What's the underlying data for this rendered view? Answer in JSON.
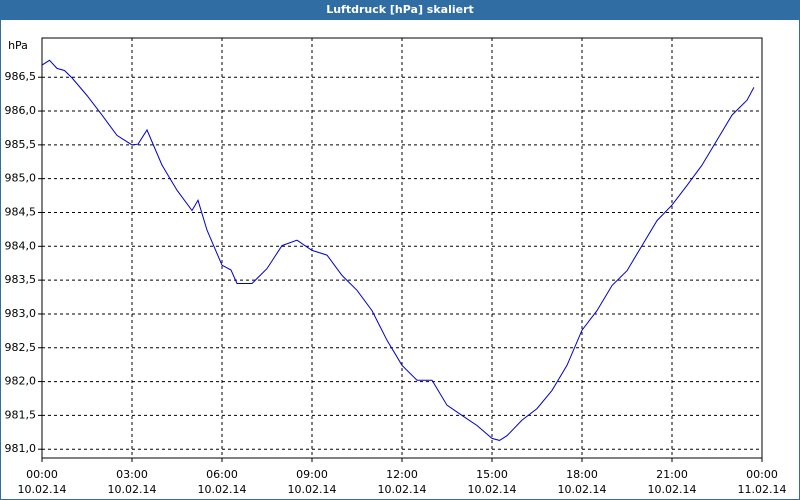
{
  "chart_data": {
    "type": "line",
    "title": "Luftdruck [hPa] skaliert",
    "ylabel": "hPa",
    "x": [
      0,
      0.25,
      0.5,
      0.75,
      1,
      1.5,
      2,
      2.5,
      3,
      3.2,
      3.5,
      4,
      4.5,
      5,
      5.2,
      5.5,
      6,
      6.3,
      6.5,
      7,
      7.5,
      8,
      8.5,
      9,
      9.5,
      10,
      10.5,
      11,
      11.5,
      12,
      12.5,
      13,
      13.5,
      14,
      14.5,
      15,
      15.25,
      15.5,
      16,
      16.5,
      17,
      17.5,
      18,
      18.5,
      19,
      19.5,
      20,
      20.5,
      21,
      21.5,
      22,
      22.5,
      23,
      23.5,
      23.73
    ],
    "series": [
      {
        "name": "Luftdruck",
        "color": "#0000cc",
        "values": [
          986.68,
          986.75,
          986.63,
          986.6,
          986.49,
          986.23,
          985.94,
          985.64,
          985.5,
          985.51,
          985.72,
          985.2,
          984.83,
          984.53,
          984.68,
          984.24,
          983.72,
          983.65,
          983.45,
          983.45,
          983.67,
          984.01,
          984.09,
          983.94,
          983.87,
          983.57,
          983.35,
          983.05,
          982.61,
          982.24,
          982.02,
          982.02,
          981.65,
          981.5,
          981.35,
          981.16,
          981.13,
          981.2,
          981.43,
          981.6,
          981.87,
          982.24,
          982.76,
          983.05,
          983.42,
          983.64,
          984.01,
          984.38,
          984.61,
          984.9,
          985.2,
          985.57,
          985.94,
          986.16,
          986.35
        ]
      }
    ],
    "xlim": [
      0,
      24
    ],
    "xticks": [
      {
        "value": 0,
        "label": "00:00\n10.02.14"
      },
      {
        "value": 3,
        "label": "03:00\n10.02.14"
      },
      {
        "value": 6,
        "label": "06:00\n10.02.14"
      },
      {
        "value": 9,
        "label": "09:00\n10.02.14"
      },
      {
        "value": 12,
        "label": "12:00\n10.02.14"
      },
      {
        "value": 15,
        "label": "15:00\n10.02.14"
      },
      {
        "value": 18,
        "label": "18:00\n10.02.14"
      },
      {
        "value": 21,
        "label": "21:00\n10.02.14"
      },
      {
        "value": 24,
        "label": "00:00\n11.02.14"
      }
    ],
    "ylim": [
      980.87,
      987.08
    ],
    "yticks": [
      {
        "value": 981,
        "label": "981,0"
      },
      {
        "value": 981.5,
        "label": "981,5"
      },
      {
        "value": 982,
        "label": "982,0"
      },
      {
        "value": 982.5,
        "label": "982,5"
      },
      {
        "value": 983,
        "label": "983,0"
      },
      {
        "value": 983.5,
        "label": "983,5"
      },
      {
        "value": 984,
        "label": "984,0"
      },
      {
        "value": 984.5,
        "label": "984,5"
      },
      {
        "value": 985,
        "label": "985,0"
      },
      {
        "value": 985.5,
        "label": "985,5"
      },
      {
        "value": 986,
        "label": "986,0"
      },
      {
        "value": 986.5,
        "label": "986,5"
      }
    ],
    "grid": true
  }
}
